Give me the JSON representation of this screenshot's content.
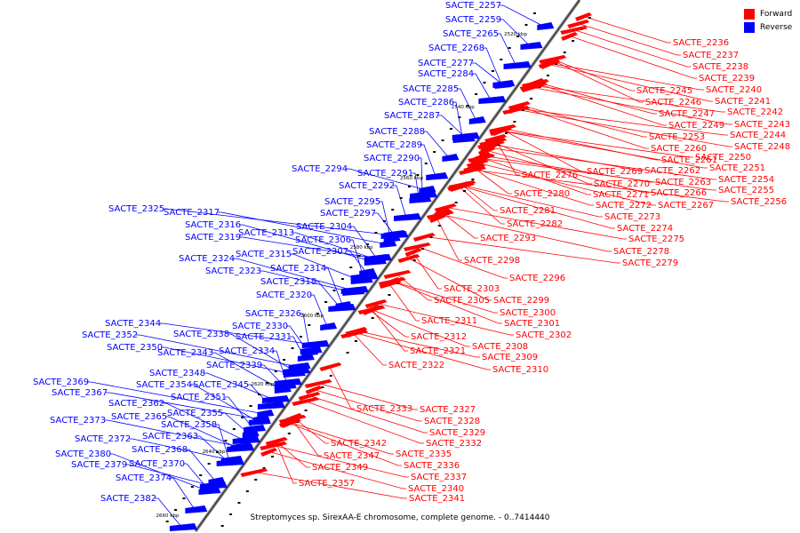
{
  "caption": "Streptomyces sp. SirexAA-E chromosome, complete genome. - 0..7414440",
  "legend": [
    {
      "label": "Forward",
      "color": "#ff0000"
    },
    {
      "label": "Reverse",
      "color": "#0000ff"
    }
  ],
  "colors": {
    "forward": "#ff0000",
    "reverse": "#0000ff",
    "axis": "#000000"
  },
  "ticks": [
    "2520 kbp",
    "2540 kbp",
    "2560 kbp",
    "2580 kbp",
    "2600 kbp",
    "2620 kbp",
    "2640 kbp",
    "2660 kbp"
  ],
  "reverse_labels": [
    "SACTE_2257",
    "SACTE_2259",
    "SACTE_2265",
    "SACTE_2268",
    "SACTE_2277",
    "SACTE_2284",
    "SACTE_2285",
    "SACTE_2286",
    "SACTE_2287",
    "SACTE_2288",
    "SACTE_2289",
    "SACTE_2290",
    "SACTE_2294",
    "SACTE_2291",
    "SACTE_2292",
    "SACTE_2295",
    "SACTE_2297",
    "SACTE_2325",
    "SACTE_2317",
    "SACTE_2316",
    "SACTE_2319",
    "SACTE_2313",
    "SACTE_2304",
    "SACTE_2306",
    "SACTE_2307",
    "SACTE_2315",
    "SACTE_2324",
    "SACTE_2314",
    "SACTE_2323",
    "SACTE_2318",
    "SACTE_2320",
    "SACTE_2326",
    "SACTE_2344",
    "SACTE_2330",
    "SACTE_2352",
    "SACTE_2338",
    "SACTE_2331",
    "SACTE_2350",
    "SACTE_2334",
    "SACTE_2343",
    "SACTE_2339",
    "SACTE_2348",
    "SACTE_2369",
    "SACTE_2354",
    "SACTE_2345",
    "SACTE_2367",
    "SACTE_2351",
    "SACTE_2362",
    "SACTE_2355",
    "SACTE_2373",
    "SACTE_2365",
    "SACTE_2358",
    "SACTE_2372",
    "SACTE_2363",
    "SACTE_2368",
    "SACTE_2380",
    "SACTE_2379",
    "SACTE_2370",
    "SACTE_2374",
    "SACTE_2382"
  ],
  "forward_labels": [
    "SACTE_2236",
    "SACTE_2237",
    "SACTE_2238",
    "SACTE_2239",
    "SACTE_2240",
    "SACTE_2245",
    "SACTE_2241",
    "SACTE_2246",
    "SACTE_2242",
    "SACTE_2247",
    "SACTE_2243",
    "SACTE_2249",
    "SACTE_2244",
    "SACTE_2253",
    "SACTE_2248",
    "SACTE_2260",
    "SACTE_2250",
    "SACTE_2261",
    "SACTE_2251",
    "SACTE_2269",
    "SACTE_2262",
    "SACTE_2254",
    "SACTE_2276",
    "SACTE_2270",
    "SACTE_2263",
    "SACTE_2255",
    "SACTE_2271",
    "SACTE_2266",
    "SACTE_2280",
    "SACTE_2256",
    "SACTE_2272",
    "SACTE_2267",
    "SACTE_2281",
    "SACTE_2273",
    "SACTE_2282",
    "SACTE_2274",
    "SACTE_2293",
    "SACTE_2275",
    "SACTE_2278",
    "SACTE_2298",
    "SACTE_2279",
    "SACTE_2296",
    "SACTE_2303",
    "SACTE_2299",
    "SACTE_2305",
    "SACTE_2300",
    "SACTE_2311",
    "SACTE_2301",
    "SACTE_2312",
    "SACTE_2302",
    "SACTE_2308",
    "SACTE_2321",
    "SACTE_2309",
    "SACTE_2322",
    "SACTE_2310",
    "SACTE_2333",
    "SACTE_2327",
    "SACTE_2328",
    "SACTE_2329",
    "SACTE_2332",
    "SACTE_2342",
    "SACTE_2335",
    "SACTE_2347",
    "SACTE_2336",
    "SACTE_2349",
    "SACTE_2337",
    "SACTE_2340",
    "SACTE_2357",
    "SACTE_2341"
  ]
}
